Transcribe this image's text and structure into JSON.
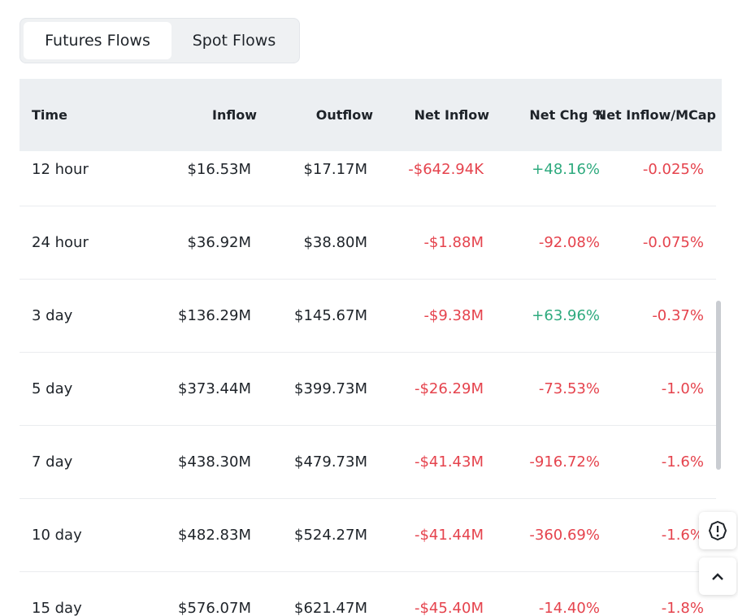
{
  "tabs": [
    "Futures Flows",
    "Spot Flows"
  ],
  "table": {
    "headers": [
      "Time",
      "Inflow",
      "Outflow",
      "Net Inflow",
      "Net Chg %",
      "Net Inflow/MCap"
    ],
    "rows": [
      [
        "12 hour",
        "$16.53M",
        "$17.17M",
        "-$642.94K",
        "+48.16%",
        "-0.025%"
      ],
      [
        "24 hour",
        "$36.92M",
        "$38.80M",
        "-$1.88M",
        "-92.08%",
        "-0.075%"
      ],
      [
        "3 day",
        "$136.29M",
        "$145.67M",
        "-$9.38M",
        "+63.96%",
        "-0.37%"
      ],
      [
        "5 day",
        "$373.44M",
        "$399.73M",
        "-$26.29M",
        "-73.53%",
        "-1.0%"
      ],
      [
        "7 day",
        "$438.30M",
        "$479.73M",
        "-$41.43M",
        "-916.72%",
        "-1.6%"
      ],
      [
        "10 day",
        "$482.83M",
        "$524.27M",
        "-$41.44M",
        "-360.69%",
        "-1.6%"
      ],
      [
        "15 day",
        "$576.07M",
        "$621.47M",
        "-$45.40M",
        "-14.40%",
        "-1.8%"
      ]
    ]
  }
}
